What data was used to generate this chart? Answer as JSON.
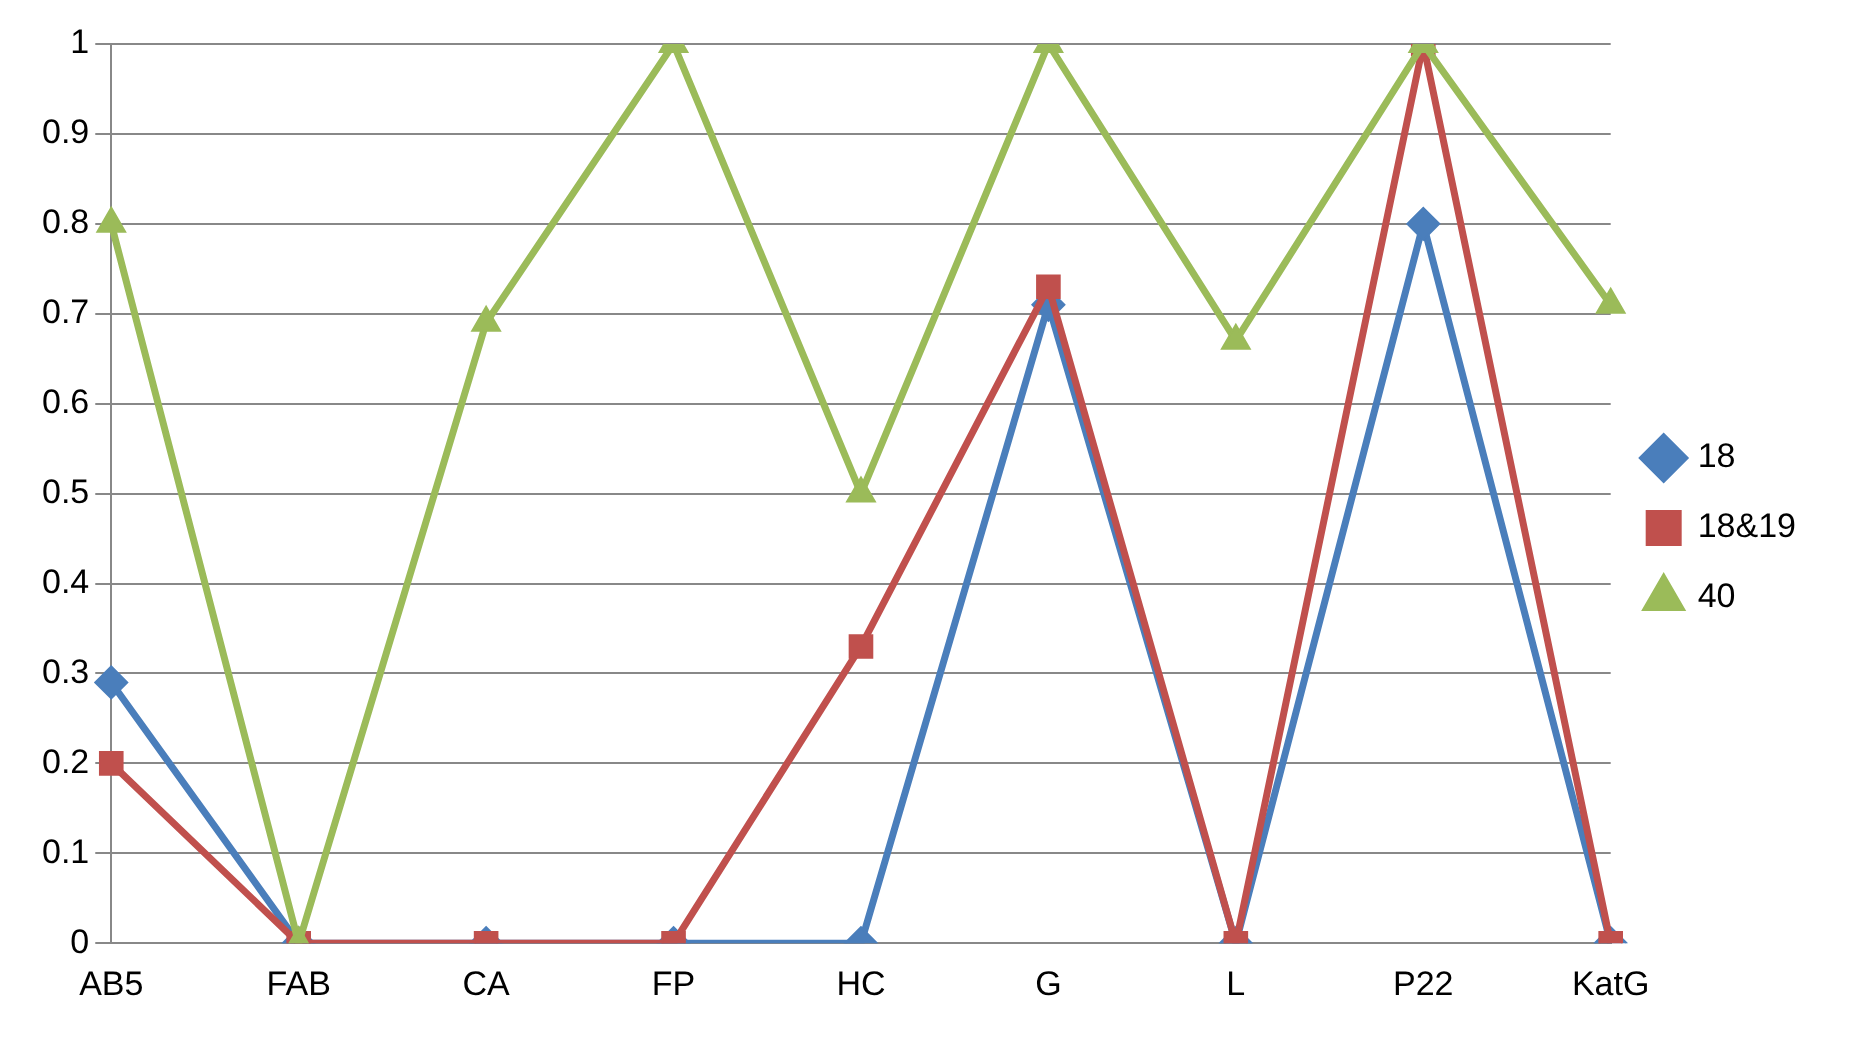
{
  "chart_data": {
    "type": "line",
    "categories": [
      "AB5",
      "FAB",
      "CA",
      "FP",
      "HC",
      "G",
      "L",
      "P22",
      "KatG"
    ],
    "series": [
      {
        "name": "18",
        "color": "#4a7ebb",
        "marker": "diamond",
        "values": [
          0.29,
          0,
          0,
          0,
          0,
          0.71,
          0,
          0.8,
          0
        ]
      },
      {
        "name": "18&19",
        "color": "#c0504d",
        "marker": "square",
        "values": [
          0.2,
          0,
          0,
          0,
          0.33,
          0.73,
          0,
          1,
          0
        ]
      },
      {
        "name": "40",
        "color": "#9bbb59",
        "marker": "triangle",
        "values": [
          0.8,
          0,
          0.69,
          1,
          0.5,
          1,
          0.67,
          1,
          0.71
        ]
      }
    ],
    "ylim": [
      0,
      1
    ],
    "yticks": [
      0,
      0.1,
      0.2,
      0.3,
      0.4,
      0.5,
      0.6,
      0.7,
      0.8,
      0.9,
      1
    ],
    "grid": "y",
    "legend": "right"
  }
}
